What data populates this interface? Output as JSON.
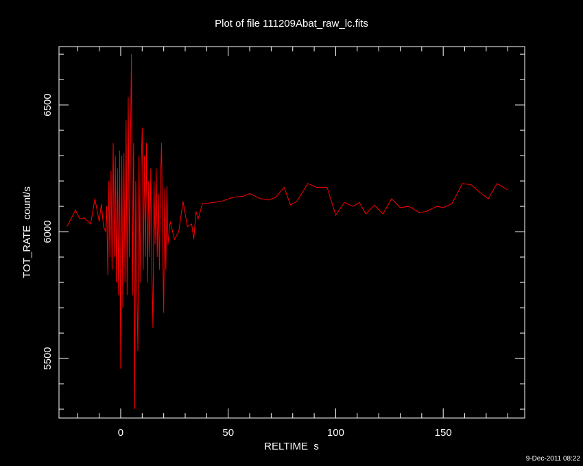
{
  "chart_data": {
    "type": "line",
    "title": "Plot of file 111209Abat_raw_lc.fits",
    "x_label": "RELTIME  s",
    "y_label": "TOT_RATE  count/s",
    "footer": "9-Dec-2011 08:22",
    "xlim": [
      -28.7,
      187.9
    ],
    "ylim": [
      5265,
      6730
    ],
    "xticks": [
      0,
      50,
      100,
      150
    ],
    "yticks": [
      5500,
      6000,
      6500
    ],
    "xminorticks": [
      -20,
      -10,
      10,
      20,
      30,
      40,
      60,
      70,
      80,
      90,
      110,
      120,
      130,
      140,
      160,
      170,
      180
    ],
    "yminorticks": [
      5300,
      5400,
      5600,
      5700,
      5800,
      5900,
      6100,
      6200,
      6300,
      6400,
      6600,
      6700
    ],
    "grid": false,
    "series": [
      {
        "name": "TOT_RATE",
        "color": "#ff0000",
        "x": [
          -25,
          -21,
          -19,
          -17,
          -14,
          -12,
          -10,
          -9,
          -8,
          -7,
          -6.5,
          -6,
          -5.5,
          -5,
          -4.5,
          -4,
          -3.5,
          -3,
          -2.5,
          -2,
          -1.5,
          -1,
          -0.5,
          0,
          0.5,
          1,
          1.5,
          2,
          2.5,
          3,
          3.5,
          4,
          4.5,
          5,
          5.5,
          6,
          6.5,
          7,
          7.5,
          8,
          8.5,
          9,
          9.5,
          10,
          10.5,
          11,
          11.5,
          12,
          12.5,
          13,
          13.5,
          14,
          14.5,
          15,
          15.5,
          16,
          16.5,
          17,
          17.5,
          18,
          18.5,
          19,
          19.5,
          20,
          20.5,
          21,
          21.5,
          22,
          23,
          25,
          27,
          29,
          31,
          33,
          34,
          35,
          36,
          38,
          43,
          47,
          52,
          57,
          60,
          65,
          69,
          72,
          76,
          79,
          82,
          87,
          91,
          96,
          100,
          104,
          108,
          111,
          114,
          118,
          122,
          126,
          130,
          134,
          139,
          142,
          147,
          150,
          154,
          159,
          163,
          167,
          171,
          175,
          180
        ],
        "values": [
          6020,
          6085,
          6050,
          6055,
          6030,
          6130,
          6040,
          6110,
          6020,
          6000,
          6100,
          5830,
          6200,
          5900,
          6240,
          5850,
          6350,
          5900,
          6300,
          5800,
          6250,
          5750,
          6320,
          5460,
          6300,
          5700,
          6310,
          5800,
          6440,
          5750,
          6530,
          5900,
          6320,
          6700,
          5750,
          6350,
          5300,
          6200,
          5780,
          5530,
          6300,
          5800,
          6250,
          6410,
          5850,
          6300,
          5900,
          6350,
          5800,
          6200,
          5900,
          6250,
          5850,
          5620,
          6200,
          5950,
          6250,
          5900,
          6150,
          5850,
          6200,
          6350,
          5950,
          5680,
          6170,
          5850,
          6180,
          5950,
          6040,
          5970,
          6000,
          6120,
          6020,
          6030,
          5970,
          6080,
          6050,
          6110,
          6115,
          6120,
          6135,
          6140,
          6150,
          6130,
          6125,
          6135,
          6175,
          6105,
          6120,
          6190,
          6175,
          6175,
          6065,
          6115,
          6100,
          6115,
          6070,
          6105,
          6070,
          6130,
          6095,
          6100,
          6075,
          6080,
          6100,
          6095,
          6110,
          6190,
          6185,
          6155,
          6130,
          6190,
          6165
        ]
      }
    ]
  }
}
